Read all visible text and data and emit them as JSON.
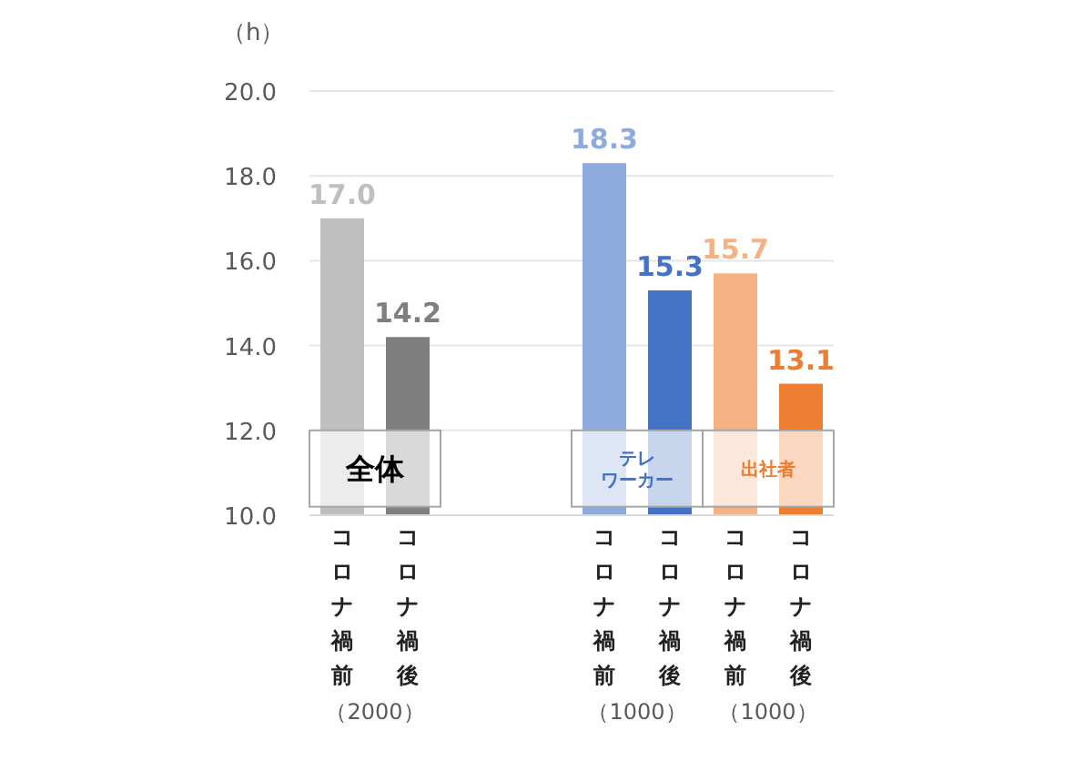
{
  "chart_data": {
    "type": "bar",
    "ylabel": "（h）",
    "categories": [
      "コロナ禍前",
      "コロナ禍後",
      null,
      null,
      "コロナ禍前",
      "コロナ禍後",
      "コロナ禍前",
      "コロナ禍後"
    ],
    "values": [
      17.0,
      14.2,
      null,
      null,
      18.3,
      15.3,
      15.7,
      13.1
    ],
    "colors": [
      "#bfbfbf",
      "#7f7f7f",
      null,
      null,
      "#8faadc",
      "#4472c4",
      "#f4b183",
      "#ed7d31"
    ],
    "value_labels": [
      "17.0",
      "14.2",
      null,
      null,
      "18.3",
      "15.3",
      "15.7",
      "13.1"
    ],
    "ylim": [
      10,
      20
    ],
    "yticks": [
      {
        "value": 10,
        "label": "10.0"
      },
      {
        "value": 12,
        "label": "12.0"
      },
      {
        "value": 14,
        "label": "14.0"
      },
      {
        "value": 16,
        "label": "16.0"
      },
      {
        "value": 18,
        "label": "18.0"
      },
      {
        "value": 20,
        "label": "20.0"
      }
    ],
    "grid": "y",
    "annotations": [
      "全体",
      "テレワーカー",
      "出社者",
      "（2000）",
      "（1000）",
      "（1000）"
    ]
  }
}
